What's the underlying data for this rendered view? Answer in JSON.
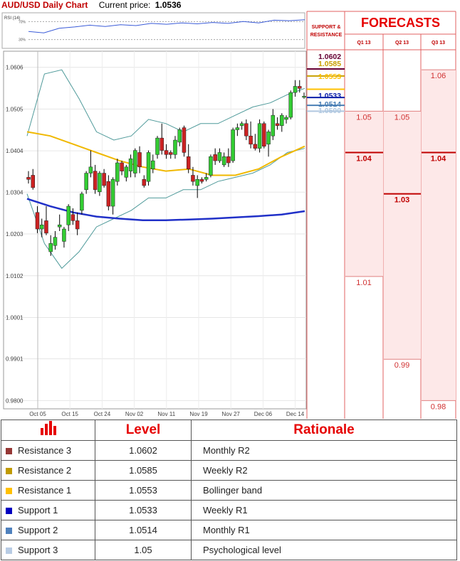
{
  "header": {
    "title": "AUD/USD Daily Chart",
    "price_label": "Current price:",
    "price_value": "1.0536"
  },
  "chart_data": {
    "type": "candlestick",
    "title": "AUD/USD Daily Chart",
    "ylim": [
      0.978,
      1.0645
    ],
    "y_ticks": [
      "1.0606",
      "1.0505",
      "1.0404",
      "1.0304",
      "1.0203",
      "1.0102",
      "1.0001",
      "0.9901",
      "0.9800"
    ],
    "x_ticks": [
      "Oct 05",
      "Oct 15",
      "Oct 24",
      "Nov 02",
      "Nov 11",
      "Nov 19",
      "Nov 27",
      "Dec 06",
      "Dec 14"
    ],
    "vertical_grid_at": "Oct 05",
    "candles": [
      [
        1.034,
        1.0355,
        1.0325,
        1.0335
      ],
      [
        1.0345,
        1.036,
        1.031,
        1.0315
      ],
      [
        1.0255,
        1.027,
        1.0205,
        1.0215
      ],
      [
        1.0215,
        1.024,
        1.0195,
        1.0225
      ],
      [
        1.0235,
        1.027,
        1.02,
        1.0205
      ],
      [
        1.016,
        1.02,
        1.015,
        1.018
      ],
      [
        1.0175,
        1.021,
        1.0165,
        1.0195
      ],
      [
        1.022,
        1.025,
        1.021,
        1.0225
      ],
      [
        1.0185,
        1.022,
        1.017,
        1.0215
      ],
      [
        1.0225,
        1.0275,
        1.021,
        1.027
      ],
      [
        1.025,
        1.0265,
        1.0225,
        1.0235
      ],
      [
        1.0235,
        1.0255,
        1.02,
        1.0215
      ],
      [
        1.026,
        1.0305,
        1.025,
        1.03
      ],
      [
        1.031,
        1.0355,
        1.03,
        1.035
      ],
      [
        1.035,
        1.0405,
        1.034,
        1.0365
      ],
      [
        1.0355,
        1.037,
        1.03,
        1.031
      ],
      [
        1.0305,
        1.0355,
        1.0295,
        1.035
      ],
      [
        1.035,
        1.036,
        1.0315,
        1.032
      ],
      [
        1.033,
        1.0345,
        1.026,
        1.027
      ],
      [
        1.027,
        1.034,
        1.025,
        1.0335
      ],
      [
        1.033,
        1.0385,
        1.032,
        1.0375
      ],
      [
        1.0375,
        1.038,
        1.0345,
        1.0355
      ],
      [
        1.034,
        1.037,
        1.033,
        1.0365
      ],
      [
        1.0355,
        1.0395,
        1.034,
        1.0385
      ],
      [
        1.035,
        1.041,
        1.034,
        1.0405
      ],
      [
        1.04,
        1.0415,
        1.035,
        1.0365
      ],
      [
        1.0335,
        1.0345,
        1.0315,
        1.032
      ],
      [
        1.033,
        1.0405,
        1.032,
        1.04
      ],
      [
        1.036,
        1.0395,
        1.035,
        1.038
      ],
      [
        1.0395,
        1.044,
        1.0385,
        1.0435
      ],
      [
        1.0435,
        1.047,
        1.0395,
        1.0405
      ],
      [
        1.0405,
        1.042,
        1.0385,
        1.0395
      ],
      [
        1.04,
        1.0405,
        1.0385,
        1.0395
      ],
      [
        1.0395,
        1.044,
        1.0385,
        1.043
      ],
      [
        1.0425,
        1.046,
        1.0415,
        1.0455
      ],
      [
        1.046,
        1.0465,
        1.039,
        1.04
      ],
      [
        1.039,
        1.042,
        1.035,
        1.036
      ],
      [
        1.0345,
        1.0365,
        1.032,
        1.033
      ],
      [
        1.032,
        1.0345,
        1.029,
        1.0335
      ],
      [
        1.0335,
        1.034,
        1.0325,
        1.033
      ],
      [
        1.0335,
        1.035,
        1.033,
        1.034
      ],
      [
        1.0345,
        1.0395,
        1.034,
        1.039
      ],
      [
        1.0395,
        1.041,
        1.037,
        1.038
      ],
      [
        1.038,
        1.041,
        1.0375,
        1.04
      ],
      [
        1.037,
        1.04,
        1.0365,
        1.039
      ],
      [
        1.039,
        1.041,
        1.0365,
        1.0375
      ],
      [
        1.038,
        1.046,
        1.0375,
        1.0455
      ],
      [
        1.0455,
        1.047,
        1.044,
        1.046
      ],
      [
        1.0465,
        1.0475,
        1.0455,
        1.047
      ],
      [
        1.047,
        1.048,
        1.043,
        1.044
      ],
      [
        1.044,
        1.0475,
        1.041,
        1.042
      ],
      [
        1.042,
        1.0445,
        1.0405,
        1.041
      ],
      [
        1.041,
        1.048,
        1.04,
        1.047
      ],
      [
        1.047,
        1.0475,
        1.041,
        1.0415
      ],
      [
        1.042,
        1.0455,
        1.039,
        1.045
      ],
      [
        1.044,
        1.0505,
        1.043,
        1.049
      ],
      [
        1.047,
        1.0485,
        1.0455,
        1.0465
      ],
      [
        1.0465,
        1.0495,
        1.045,
        1.049
      ],
      [
        1.048,
        1.049,
        1.047,
        1.0485
      ],
      [
        1.0485,
        1.055,
        1.048,
        1.0545
      ],
      [
        1.0545,
        1.0575,
        1.0535,
        1.056
      ],
      [
        1.056,
        1.0575,
        1.0545,
        1.0555
      ],
      [
        1.0535,
        1.0545,
        1.053,
        1.0536
      ]
    ],
    "moving_average_yellow": [
      1.045,
      1.044,
      1.042,
      1.04,
      1.038,
      1.0365,
      1.0355,
      1.036,
      1.0345,
      1.0345,
      1.036,
      1.039,
      1.0415
    ],
    "moving_average_blue": [
      1.0288,
      1.027,
      1.0255,
      1.0245,
      1.024,
      1.0236,
      1.0236,
      1.0238,
      1.024,
      1.0243,
      1.0246,
      1.025,
      1.0258
    ],
    "bollinger_upper": [
      1.044,
      1.059,
      1.06,
      1.053,
      1.045,
      1.043,
      1.044,
      1.048,
      1.047,
      1.045,
      1.047,
      1.047,
      1.049,
      1.051,
      1.052,
      1.054,
      1.0555
    ],
    "bollinger_lower": [
      1.03,
      1.018,
      1.012,
      1.016,
      1.022,
      1.024,
      1.026,
      1.029,
      1.029,
      1.031,
      1.031,
      1.033,
      1.034,
      1.035,
      1.037,
      1.04,
      1.041
    ],
    "rsi": {
      "label": "RSI (14)",
      "levels": [
        "70%",
        "30%"
      ],
      "values": [
        48,
        45,
        55,
        58,
        62,
        59,
        63,
        61,
        66,
        64,
        67,
        65,
        68,
        66,
        70,
        67,
        73,
        72,
        74
      ]
    },
    "sr_levels": [
      {
        "label": "1.0602",
        "value": 1.0602,
        "color": "#660033"
      },
      {
        "label": "1.0585",
        "value": 1.0585,
        "color": "#c8a000"
      },
      {
        "label": "1.0553",
        "value": 1.0553,
        "color": "#ffc000"
      },
      {
        "label": "1.0533",
        "value": 1.0533,
        "color": "#0a1ea8"
      },
      {
        "label": "1.0514",
        "value": 1.0514,
        "color": "#4a7fb5"
      },
      {
        "label": "1.0500",
        "value": 1.05,
        "color": "#b0c8e0"
      }
    ],
    "forecasts": [
      {
        "label": "Q1 13",
        "bars": [
          {
            "top": 1.05,
            "bottom": 1.01,
            "text": "1.05",
            "bold": false
          },
          {
            "value": 1.04,
            "text": "1.04",
            "bold": true
          },
          {
            "value": 1.01,
            "text": "1.01",
            "bold": false
          }
        ]
      },
      {
        "label": "Q2 13",
        "bars": [
          {
            "top": 1.05,
            "bottom": 0.99,
            "text": "1.05",
            "bold": false
          },
          {
            "value": 1.03,
            "text": "1.03",
            "bold": true
          },
          {
            "value": 0.99,
            "text": "0.99",
            "bold": false
          }
        ]
      },
      {
        "label": "Q3 13",
        "bars": [
          {
            "top": 1.06,
            "bottom": 0.98,
            "text": "1.06",
            "bold": false
          },
          {
            "value": 1.04,
            "text": "1.04",
            "bold": true
          },
          {
            "value": 0.98,
            "text": "0.98",
            "bold": false
          }
        ]
      }
    ]
  },
  "sidebar": {
    "sr_title_line1": "SUPPORT &",
    "sr_title_line2": "RESISTANCE",
    "forecasts_title": "FORECASTS"
  },
  "table": {
    "headers": [
      "",
      "Level",
      "Rationale"
    ],
    "rows": [
      {
        "name": "Resistance 3",
        "level": "1.0602",
        "rationale": "Monthly R2",
        "color": "#953735"
      },
      {
        "name": "Resistance 2",
        "level": "1.0585",
        "rationale": "Weekly R2",
        "color": "#c09a00"
      },
      {
        "name": "Resistance 1",
        "level": "1.0553",
        "rationale": "Bollinger band",
        "color": "#ffc000"
      },
      {
        "name": "Support 1",
        "level": "1.0533",
        "rationale": "Weekly R1",
        "color": "#0000c0"
      },
      {
        "name": "Support 2",
        "level": "1.0514",
        "rationale": "Monthly R1",
        "color": "#4f81bd"
      },
      {
        "name": "Support 3",
        "level": "1.05",
        "rationale": "Psychological level",
        "color": "#b8cce4"
      }
    ]
  }
}
